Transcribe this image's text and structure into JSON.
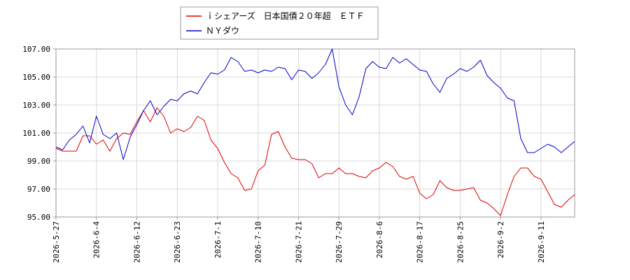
{
  "chart_data": {
    "type": "line",
    "title": "",
    "xlabel": "",
    "ylabel": "",
    "ylim": [
      95.0,
      107.0
    ],
    "yticks": [
      "95.00",
      "97.00",
      "99.00",
      "101.00",
      "103.00",
      "105.00",
      "107.00"
    ],
    "grid": true,
    "legend_position": "top-left",
    "x_tick_labels": [
      "2026-5-27",
      "2026-6-4",
      "2026-6-12",
      "2026-6-23",
      "2026-7-1",
      "2026-7-10",
      "2026-7-21",
      "2026-7-29",
      "2026-8-6",
      "2026-8-17",
      "2026-8-25",
      "2026-9-2",
      "2026-9-11"
    ],
    "x_tick_index": [
      0,
      6,
      12,
      18,
      24,
      30,
      36,
      42,
      48,
      54,
      60,
      66,
      72
    ],
    "series": [
      {
        "name": "ｉシェアーズ　日本国債２０年超　ＥＴＦ",
        "color": "#dd0000",
        "values": [
          99.9,
          99.7,
          99.7,
          99.7,
          100.8,
          100.8,
          100.2,
          100.5,
          99.7,
          100.6,
          101.0,
          100.9,
          101.8,
          102.6,
          101.8,
          102.8,
          102.2,
          101.0,
          101.3,
          101.1,
          101.4,
          102.2,
          101.9,
          100.5,
          99.9,
          98.9,
          98.1,
          97.8,
          96.9,
          97.0,
          98.3,
          98.7,
          100.9,
          101.1,
          100.0,
          99.2,
          99.1,
          99.1,
          98.8,
          97.8,
          98.1,
          98.1,
          98.5,
          98.1,
          98.1,
          97.9,
          97.8,
          98.3,
          98.5,
          98.9,
          98.6,
          97.9,
          97.7,
          97.9,
          96.7,
          96.3,
          96.6,
          97.6,
          97.1,
          96.9,
          96.9,
          97.0,
          97.1,
          96.2,
          96.0,
          95.6,
          95.1,
          96.6,
          97.9,
          98.5,
          98.5,
          97.9,
          97.7,
          96.8,
          95.9,
          95.7,
          96.2,
          96.6
        ]
      },
      {
        "name": "ＮＹダウ",
        "color": "#0000cc",
        "values": [
          100.0,
          99.8,
          100.5,
          100.9,
          101.5,
          100.3,
          102.2,
          100.9,
          100.6,
          101.0,
          99.1,
          100.7,
          101.6,
          102.6,
          103.3,
          102.3,
          102.9,
          103.4,
          103.3,
          103.8,
          104.0,
          103.8,
          104.6,
          105.3,
          105.2,
          105.5,
          106.4,
          106.1,
          105.4,
          105.5,
          105.3,
          105.5,
          105.4,
          105.7,
          105.6,
          104.8,
          105.5,
          105.4,
          104.9,
          105.3,
          105.9,
          107.0,
          104.3,
          103.0,
          102.3,
          103.6,
          105.6,
          106.1,
          105.7,
          105.6,
          106.4,
          106.0,
          106.3,
          105.9,
          105.5,
          105.4,
          104.5,
          103.9,
          104.9,
          105.2,
          105.6,
          105.4,
          105.7,
          106.2,
          105.1,
          104.6,
          104.2,
          103.5,
          103.3,
          100.6,
          99.6,
          99.6,
          99.9,
          100.2,
          100.0,
          99.6,
          100.0,
          100.4
        ]
      }
    ]
  }
}
